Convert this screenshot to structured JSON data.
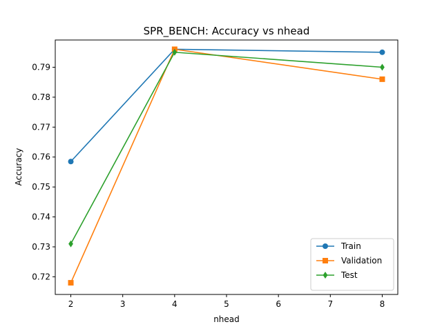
{
  "chart_data": {
    "type": "line",
    "title": "SPR_BENCH: Accuracy vs nhead",
    "xlabel": "nhead",
    "ylabel": "Accuracy",
    "x": [
      2,
      4,
      8
    ],
    "xlim": [
      1.7,
      8.3
    ],
    "ylim": [
      0.7141,
      0.7991
    ],
    "xticks": [
      2,
      3,
      4,
      5,
      6,
      7,
      8
    ],
    "yticks": [
      0.72,
      0.73,
      0.74,
      0.75,
      0.76,
      0.77,
      0.78,
      0.79
    ],
    "grid": false,
    "legend_position": "lower-right",
    "series": [
      {
        "name": "Train",
        "values": [
          0.7585,
          0.796,
          0.795
        ],
        "color": "#1f77b4",
        "marker": "circle"
      },
      {
        "name": "Validation",
        "values": [
          0.718,
          0.796,
          0.786
        ],
        "color": "#ff7f0e",
        "marker": "square"
      },
      {
        "name": "Test",
        "values": [
          0.731,
          0.795,
          0.79
        ],
        "color": "#2ca02c",
        "marker": "diamond"
      }
    ]
  }
}
